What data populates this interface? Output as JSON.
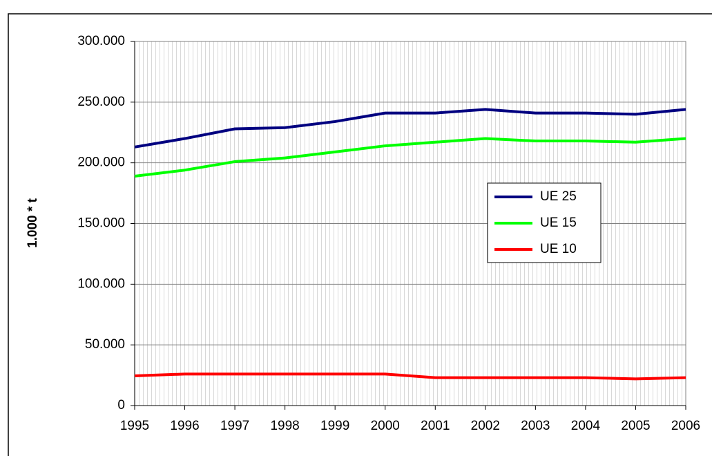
{
  "chart_data": {
    "type": "line",
    "ylabel": "1.000 * t",
    "x": [
      1995,
      1996,
      1997,
      1998,
      1999,
      2000,
      2001,
      2002,
      2003,
      2004,
      2005,
      2006
    ],
    "xlim": [
      1995,
      2006
    ],
    "xticks": [
      1995,
      1996,
      1997,
      1998,
      1999,
      2000,
      2001,
      2002,
      2003,
      2004,
      2005,
      2006
    ],
    "ylim": [
      0,
      300000
    ],
    "yticks": [
      0,
      {
        "value": 50000,
        "label": "50.000"
      },
      {
        "value": 100000,
        "label": "100.000"
      },
      {
        "value": 150000,
        "label": "150.000"
      },
      {
        "value": 200000,
        "label": "200.000"
      },
      {
        "value": 250000,
        "label": "250.000"
      },
      {
        "value": 300000,
        "label": "300.000"
      }
    ],
    "grid": true,
    "legend": "right",
    "series": [
      {
        "name": "UE 25",
        "color": "#000080",
        "values": [
          213000,
          220000,
          228000,
          229000,
          234000,
          241000,
          241000,
          244000,
          241000,
          241000,
          240000,
          244000
        ]
      },
      {
        "name": "UE 15",
        "color": "#00ff00",
        "values": [
          189000,
          194000,
          201000,
          204000,
          209000,
          214000,
          217000,
          220000,
          218000,
          218000,
          217000,
          220000
        ]
      },
      {
        "name": "UE 10",
        "color": "#ff0000",
        "values": [
          24500,
          26000,
          26000,
          26000,
          26000,
          26000,
          23000,
          23000,
          23000,
          23000,
          22000,
          23000
        ]
      }
    ]
  }
}
